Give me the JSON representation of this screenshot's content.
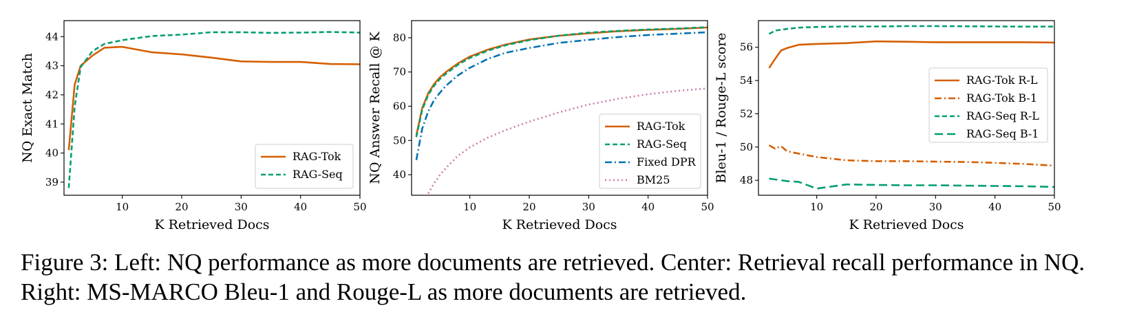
{
  "colors": {
    "orange": "#d55e00",
    "green": "#009e73",
    "blue": "#0072b2",
    "pink": "#cc79a7"
  },
  "caption": "Figure 3: Left: NQ performance as more documents are retrieved. Center: Retrieval recall performance in NQ. Right: MS-MARCO Bleu-1 and Rouge-L as more documents are retrieved.",
  "chart_data": [
    {
      "type": "line",
      "title": "",
      "xlabel": "K Retrieved Docs",
      "ylabel": "NQ Exact Match",
      "xlim": [
        0.2,
        50
      ],
      "ylim": [
        38.55,
        44.55
      ],
      "xticks": [
        10,
        20,
        30,
        40,
        50
      ],
      "yticks": [
        39,
        40,
        41,
        42,
        43,
        44
      ],
      "grid": false,
      "legend": "lower-right",
      "series": [
        {
          "name": "RAG-Tok",
          "color": "#d55e00",
          "style": "solid",
          "x": [
            1,
            2,
            3,
            5,
            7,
            10,
            15,
            20,
            25,
            30,
            35,
            40,
            45,
            50
          ],
          "y": [
            40.1,
            42.35,
            43.0,
            43.35,
            43.62,
            43.65,
            43.46,
            43.39,
            43.28,
            43.15,
            43.13,
            43.13,
            43.06,
            43.05
          ]
        },
        {
          "name": "RAG-Seq",
          "color": "#009e73",
          "style": "dashed",
          "x": [
            1,
            2,
            3,
            5,
            7,
            10,
            15,
            20,
            25,
            30,
            35,
            40,
            45,
            50
          ],
          "y": [
            38.8,
            41.6,
            42.95,
            43.5,
            43.75,
            43.88,
            44.02,
            44.07,
            44.15,
            44.15,
            44.13,
            44.14,
            44.16,
            44.14
          ]
        }
      ]
    },
    {
      "type": "line",
      "title": "",
      "xlabel": "K Retrieved Docs",
      "ylabel": "NQ Answer Recall @ K",
      "xlim": [
        0.2,
        50
      ],
      "ylim": [
        34,
        85
      ],
      "xticks": [
        10,
        20,
        30,
        40,
        50
      ],
      "yticks": [
        40,
        50,
        60,
        70,
        80
      ],
      "grid": false,
      "legend": "lower-right",
      "series": [
        {
          "name": "RAG-Tok",
          "color": "#d55e00",
          "style": "solid",
          "x": [
            1,
            2,
            3,
            4,
            5,
            6,
            8,
            10,
            13,
            16,
            20,
            25,
            30,
            35,
            40,
            45,
            50
          ],
          "y": [
            51.5,
            59.5,
            63.8,
            66.5,
            68.5,
            70.0,
            72.5,
            74.5,
            76.5,
            78.0,
            79.5,
            80.6,
            81.3,
            81.9,
            82.3,
            82.6,
            83.0
          ]
        },
        {
          "name": "RAG-Seq",
          "color": "#009e73",
          "style": "dashed",
          "x": [
            1,
            2,
            3,
            4,
            5,
            6,
            8,
            10,
            13,
            16,
            20,
            25,
            30,
            35,
            40,
            45,
            50
          ],
          "y": [
            51.0,
            59.0,
            63.3,
            66.0,
            68.0,
            69.5,
            72.1,
            74.1,
            76.2,
            77.8,
            79.3,
            80.6,
            81.5,
            82.0,
            82.4,
            82.7,
            83.1
          ]
        },
        {
          "name": "Fixed DPR",
          "color": "#0072b2",
          "style": "dashdot",
          "x": [
            1,
            2,
            3,
            4,
            5,
            6,
            8,
            10,
            13,
            16,
            20,
            25,
            30,
            35,
            40,
            45,
            50
          ],
          "y": [
            44.3,
            53.5,
            58.5,
            61.8,
            64.0,
            66.0,
            69.0,
            71.2,
            73.8,
            75.6,
            77.0,
            78.5,
            79.4,
            80.2,
            80.8,
            81.2,
            81.6
          ]
        },
        {
          "name": "BM25",
          "color": "#cc79a7",
          "style": "dotted",
          "x": [
            3,
            4,
            5,
            6,
            8,
            10,
            13,
            16,
            20,
            25,
            30,
            35,
            40,
            45,
            50
          ],
          "y": [
            34.5,
            37.5,
            40.0,
            42.0,
            45.5,
            48.0,
            50.8,
            53.0,
            55.5,
            58.2,
            60.5,
            62.2,
            63.5,
            64.5,
            65.2
          ]
        }
      ]
    },
    {
      "type": "line",
      "title": "",
      "xlabel": "K Retrieved Docs",
      "ylabel": "Bleu-1 / Rouge-L score",
      "xlim": [
        0.2,
        50
      ],
      "ylim": [
        47.1,
        57.6
      ],
      "xticks": [
        10,
        20,
        30,
        40,
        50
      ],
      "yticks": [
        48,
        50,
        52,
        54,
        56
      ],
      "grid": false,
      "legend": "center-right",
      "series": [
        {
          "name": "RAG-Tok R-L",
          "color": "#d55e00",
          "style": "solid",
          "x": [
            2,
            3,
            4,
            5,
            7,
            10,
            15,
            20,
            25,
            30,
            35,
            40,
            45,
            50
          ],
          "y": [
            54.75,
            55.3,
            55.8,
            55.95,
            56.15,
            56.2,
            56.25,
            56.35,
            56.33,
            56.3,
            56.3,
            56.3,
            56.3,
            56.28
          ]
        },
        {
          "name": "RAG-Tok B-1",
          "color": "#d55e00",
          "style": "dashdot",
          "x": [
            2,
            3,
            4,
            5,
            7,
            10,
            15,
            20,
            25,
            30,
            35,
            40,
            45,
            50
          ],
          "y": [
            50.1,
            49.9,
            50.05,
            49.75,
            49.6,
            49.4,
            49.2,
            49.15,
            49.15,
            49.12,
            49.1,
            49.05,
            48.98,
            48.88
          ]
        },
        {
          "name": "RAG-Seq R-L",
          "color": "#009e73",
          "style": "dashed",
          "x": [
            2,
            3,
            4,
            5,
            7,
            10,
            15,
            20,
            25,
            30,
            35,
            40,
            45,
            50
          ],
          "y": [
            56.8,
            57.0,
            57.05,
            57.1,
            57.18,
            57.22,
            57.25,
            57.25,
            57.27,
            57.27,
            57.26,
            57.25,
            57.24,
            57.24
          ]
        },
        {
          "name": "RAG-Seq B-1",
          "color": "#009e73",
          "style": "longdash",
          "x": [
            2,
            3,
            4,
            5,
            7,
            10,
            11,
            15,
            20,
            25,
            30,
            35,
            40,
            45,
            50
          ],
          "y": [
            48.1,
            48.05,
            48.0,
            47.95,
            47.9,
            47.5,
            47.55,
            47.75,
            47.72,
            47.7,
            47.7,
            47.68,
            47.66,
            47.64,
            47.6
          ]
        }
      ]
    }
  ]
}
